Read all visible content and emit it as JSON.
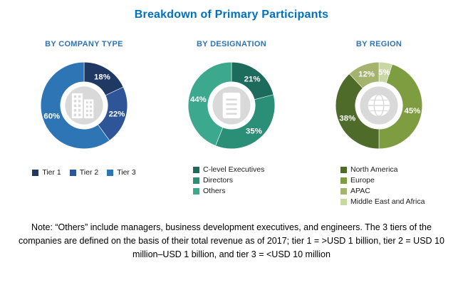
{
  "page": {
    "title": "Breakdown of Primary Participants",
    "note": "Note: “Others” include managers, business development executives, and engineers. The 3 tiers of the companies are defined on the basis of their total revenue as of 2017; tier 1 = >USD 1 billion, tier 2 = USD 10 million–USD 1 billion, and tier 3 = <USD 10 million"
  },
  "colors": {
    "title_blue": "#0070C0",
    "section_heading_blue": "#2E74B5",
    "donut_hole_gray": "#D9D9D9",
    "segment_label_text": "#FFFFFF"
  },
  "chart_data": [
    {
      "type": "pie",
      "title": "BY COMPANY TYPE",
      "center_icon": "building-icon",
      "legend_layout": "horizontal",
      "values_unit": "%",
      "segments": [
        {
          "label": "Tier 1",
          "value": 18,
          "display": "18%",
          "color": "#203864"
        },
        {
          "label": "Tier 2",
          "value": 22,
          "display": "22%",
          "color": "#2E5597"
        },
        {
          "label": "Tier 3",
          "value": 60,
          "display": "60%",
          "color": "#2E75B6"
        }
      ],
      "draw_order_clockwise_from_top": [
        0,
        1,
        2
      ]
    },
    {
      "type": "pie",
      "title": "BY DESIGNATION",
      "center_icon": "document-icon",
      "legend_layout": "vertical",
      "values_unit": "%",
      "segments": [
        {
          "label": "C-level Executives",
          "value": 21,
          "display": "21%",
          "color": "#1D6B5C"
        },
        {
          "label": "Directors",
          "value": 35,
          "display": "35%",
          "color": "#2B8F77"
        },
        {
          "label": "Others",
          "value": 44,
          "display": "44%",
          "color": "#3CA88E"
        }
      ],
      "draw_order_clockwise_from_top": [
        0,
        1,
        2
      ]
    },
    {
      "type": "pie",
      "title": "BY REGION",
      "center_icon": "globe-icon",
      "legend_layout": "vertical",
      "values_unit": "%",
      "segments": [
        {
          "label": "North America",
          "value": 38,
          "display": "38%",
          "color": "#4F6B29"
        },
        {
          "label": "Europe",
          "value": 45,
          "display": "45%",
          "color": "#7E9C40"
        },
        {
          "label": "APAC",
          "value": 12,
          "display": "12%",
          "color": "#A4B46E"
        },
        {
          "label": "Middle East and Africa",
          "value": 5,
          "display": "5%",
          "color": "#C9D7A2"
        }
      ],
      "draw_order_clockwise_from_top": [
        3,
        1,
        0,
        2
      ]
    }
  ]
}
